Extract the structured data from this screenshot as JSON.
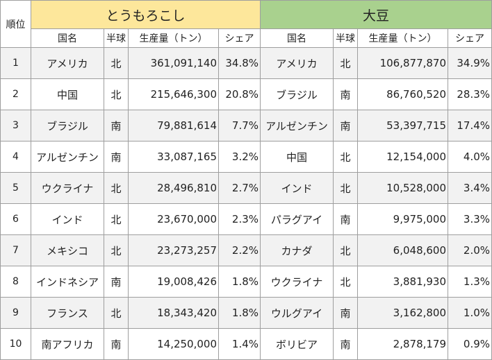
{
  "header": {
    "rank": "順位",
    "group1": "とうもろこし",
    "group2": "大豆",
    "country": "国名",
    "hemisphere": "半球",
    "production": "生産量（トン）",
    "share": "シェア"
  },
  "colors": {
    "corn_header": "#fde79b",
    "soy_header": "#a9d18e",
    "row_shade": "#f2f2f2"
  },
  "rows": [
    {
      "rank": "1",
      "corn": {
        "country": "アメリカ",
        "hemi": "北",
        "prod": "361,091,140",
        "share": "34.8%"
      },
      "soy": {
        "country": "アメリカ",
        "hemi": "北",
        "prod": "106,877,870",
        "share": "34.9%"
      }
    },
    {
      "rank": "2",
      "corn": {
        "country": "中国",
        "hemi": "北",
        "prod": "215,646,300",
        "share": "20.8%"
      },
      "soy": {
        "country": "ブラジル",
        "hemi": "南",
        "prod": "86,760,520",
        "share": "28.3%"
      }
    },
    {
      "rank": "3",
      "corn": {
        "country": "ブラジル",
        "hemi": "南",
        "prod": "79,881,614",
        "share": "7.7%"
      },
      "soy": {
        "country": "アルゼンチン",
        "hemi": "南",
        "prod": "53,397,715",
        "share": "17.4%"
      }
    },
    {
      "rank": "4",
      "corn": {
        "country": "アルゼンチン",
        "hemi": "南",
        "prod": "33,087,165",
        "share": "3.2%"
      },
      "soy": {
        "country": "中国",
        "hemi": "北",
        "prod": "12,154,000",
        "share": "4.0%"
      }
    },
    {
      "rank": "5",
      "corn": {
        "country": "ウクライナ",
        "hemi": "北",
        "prod": "28,496,810",
        "share": "2.7%"
      },
      "soy": {
        "country": "インド",
        "hemi": "北",
        "prod": "10,528,000",
        "share": "3.4%"
      }
    },
    {
      "rank": "6",
      "corn": {
        "country": "インド",
        "hemi": "北",
        "prod": "23,670,000",
        "share": "2.3%"
      },
      "soy": {
        "country": "パラグアイ",
        "hemi": "南",
        "prod": "9,975,000",
        "share": "3.3%"
      }
    },
    {
      "rank": "7",
      "corn": {
        "country": "メキシコ",
        "hemi": "北",
        "prod": "23,273,257",
        "share": "2.2%"
      },
      "soy": {
        "country": "カナダ",
        "hemi": "北",
        "prod": "6,048,600",
        "share": "2.0%"
      }
    },
    {
      "rank": "8",
      "corn": {
        "country": "インドネシア",
        "hemi": "南",
        "prod": "19,008,426",
        "share": "1.8%"
      },
      "soy": {
        "country": "ウクライナ",
        "hemi": "北",
        "prod": "3,881,930",
        "share": "1.3%"
      }
    },
    {
      "rank": "9",
      "corn": {
        "country": "フランス",
        "hemi": "北",
        "prod": "18,343,420",
        "share": "1.8%"
      },
      "soy": {
        "country": "ウルグアイ",
        "hemi": "南",
        "prod": "3,162,800",
        "share": "1.0%"
      }
    },
    {
      "rank": "10",
      "corn": {
        "country": "南アフリカ",
        "hemi": "南",
        "prod": "14,250,000",
        "share": "1.4%"
      },
      "soy": {
        "country": "ボリビア",
        "hemi": "南",
        "prod": "2,878,179",
        "share": "0.9%"
      }
    }
  ]
}
